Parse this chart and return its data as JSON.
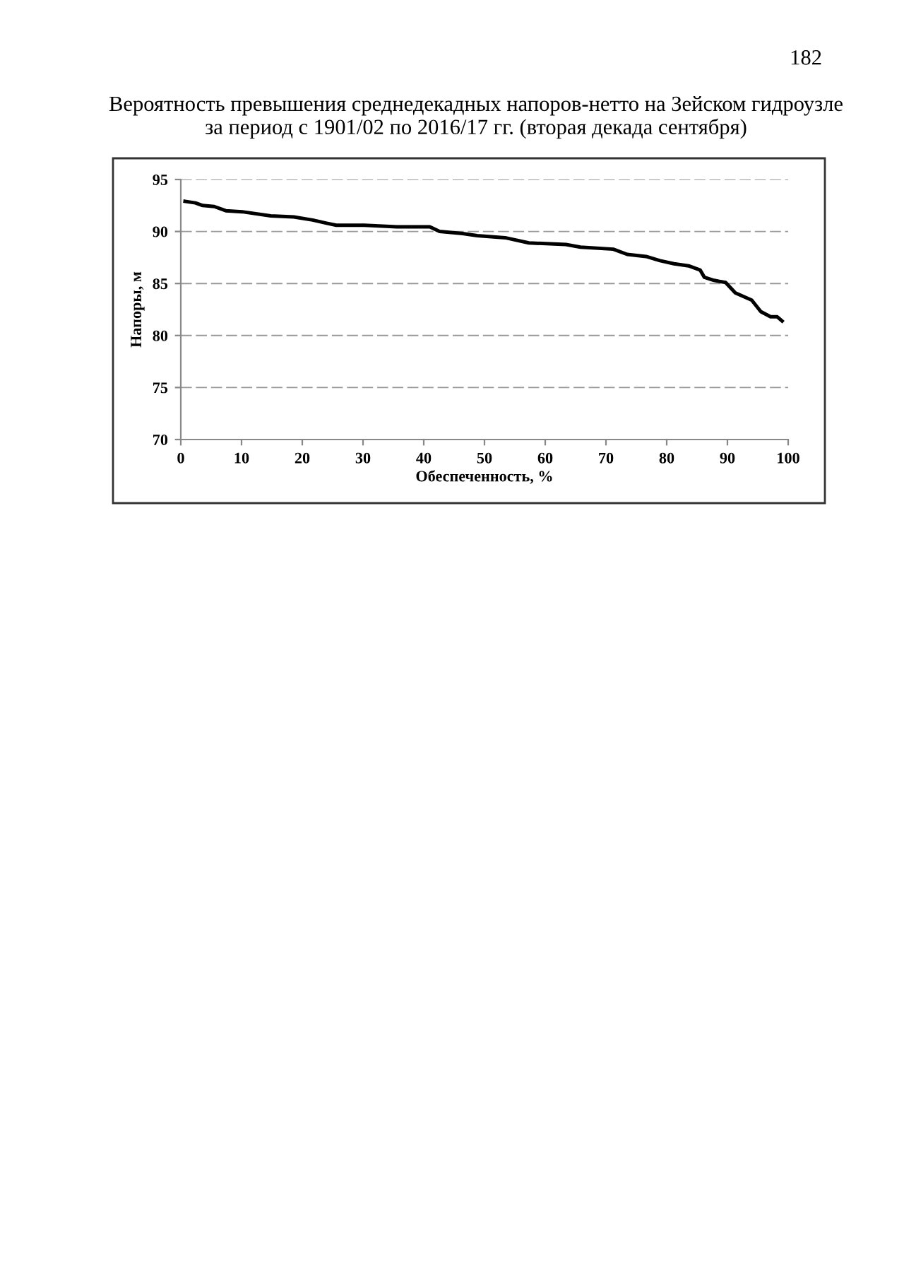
{
  "chart_data": {
    "type": "line",
    "title": "Вероятность превышения среднедекадных напоров-нетто на Зейском гидроузле\nза период с 1901/02 по 2016/17 гг. (вторая декада сентября)",
    "xlabel": "Обеспеченность, %",
    "ylabel": "Напоры, м",
    "annotations": [
      "182"
    ],
    "xlim": [
      0,
      100
    ],
    "ylim": [
      70,
      95
    ],
    "xticks": [
      0,
      10,
      20,
      30,
      40,
      50,
      60,
      70,
      80,
      90,
      100
    ],
    "yticks": [
      70,
      75,
      80,
      85,
      90,
      95
    ],
    "grid": "y",
    "legend": false,
    "marker": "none",
    "line_style": "solid",
    "series": [
      {
        "color": "#000000",
        "x": [
          0.7,
          2.4,
          3.6,
          5.5,
          7.4,
          10.1,
          14.8,
          18.6,
          21.7,
          24.0,
          25.6,
          30.2,
          35.6,
          41.0,
          42.6,
          46.4,
          48.8,
          53.4,
          57.3,
          63.4,
          65.8,
          71.2,
          73.5,
          76.6,
          78.9,
          81.2,
          83.6,
          85.5,
          86.2,
          87.8,
          89.7,
          91.3,
          94.0,
          95.5,
          97.1,
          98.2,
          99.0
        ],
        "values": [
          92.9,
          92.75,
          92.5,
          92.4,
          92.0,
          91.9,
          91.5,
          91.4,
          91.1,
          90.8,
          90.6,
          90.6,
          90.45,
          90.45,
          90.0,
          89.8,
          89.6,
          89.4,
          88.9,
          88.75,
          88.5,
          88.3,
          87.8,
          87.6,
          87.2,
          86.9,
          86.7,
          86.3,
          85.6,
          85.3,
          85.1,
          84.1,
          83.4,
          82.3,
          81.8,
          81.8,
          81.4
        ]
      }
    ]
  }
}
